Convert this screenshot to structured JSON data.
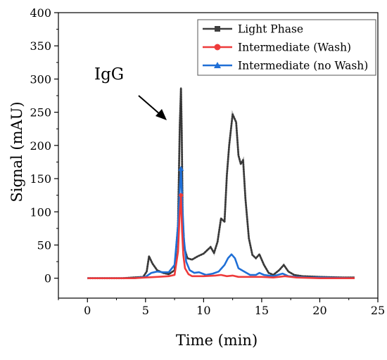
{
  "colors": {
    "light_phase": "#3f3f3f",
    "intermediate_wash": "#ee3b3b",
    "intermediate_no_wash": "#1f6fd6"
  },
  "chart_data": {
    "type": "line",
    "title": "",
    "xlabel": "Time (min)",
    "ylabel": "Signal (mAU)",
    "xlim": [
      -2.5,
      25
    ],
    "ylim": [
      -30,
      400
    ],
    "xticks": [
      0,
      5,
      10,
      15,
      20,
      25
    ],
    "yticks": [
      0,
      50,
      100,
      150,
      200,
      250,
      300,
      350,
      400
    ],
    "grid": false,
    "legend_position": "top-right",
    "annotation": {
      "text": "IgG",
      "points_to": [
        8.1,
        285
      ]
    },
    "series": [
      {
        "name": "Light Phase",
        "marker": "square",
        "color": "#3f3f3f",
        "x": [
          0,
          3,
          4.8,
          5.1,
          5.3,
          5.6,
          6.0,
          6.5,
          7.0,
          7.5,
          7.8,
          7.95,
          8.05,
          8.12,
          8.2,
          8.35,
          8.6,
          9.0,
          9.5,
          10.0,
          10.3,
          10.6,
          10.9,
          11.2,
          11.5,
          11.8,
          12.0,
          12.2,
          12.5,
          12.8,
          13.0,
          13.2,
          13.4,
          13.6,
          13.9,
          14.2,
          14.5,
          14.8,
          15.2,
          15.6,
          16.0,
          16.5,
          16.9,
          17.3,
          17.8,
          18.5,
          20,
          22,
          23
        ],
        "y": [
          0,
          0,
          2,
          10,
          33,
          22,
          12,
          8,
          6,
          12,
          80,
          230,
          286,
          220,
          90,
          45,
          30,
          28,
          33,
          37,
          42,
          47,
          38,
          55,
          90,
          85,
          155,
          200,
          247,
          235,
          185,
          172,
          178,
          120,
          60,
          35,
          30,
          36,
          20,
          8,
          5,
          12,
          20,
          10,
          5,
          3,
          2,
          1,
          1
        ]
      },
      {
        "name": "Intermediate (Wash)",
        "marker": "circle",
        "color": "#ee3b3b",
        "x": [
          0,
          4,
          5,
          6,
          7,
          7.5,
          7.8,
          7.95,
          8.05,
          8.15,
          8.25,
          8.4,
          8.7,
          9.0,
          10,
          11,
          11.5,
          12,
          12.5,
          13,
          14,
          15,
          16,
          17,
          18,
          20,
          23
        ],
        "y": [
          0,
          0,
          1,
          2,
          3,
          5,
          40,
          100,
          125,
          70,
          35,
          15,
          6,
          3,
          3,
          4,
          5,
          3,
          4,
          2,
          2,
          2,
          1,
          3,
          1,
          0,
          0
        ],
        "points": [
          [
            8.05,
            125
          ]
        ]
      },
      {
        "name": "Intermediate (no Wash)",
        "marker": "triangle",
        "color": "#1f6fd6",
        "x": [
          0,
          4,
          5,
          5.5,
          6,
          6.5,
          7,
          7.5,
          7.8,
          7.95,
          8.05,
          8.15,
          8.3,
          8.5,
          8.8,
          9.2,
          9.6,
          10.2,
          10.8,
          11.3,
          11.8,
          12.1,
          12.4,
          12.7,
          13.0,
          13.5,
          14,
          14.5,
          14.8,
          15.2,
          16,
          16.8,
          17.3,
          18,
          19,
          20,
          23
        ],
        "y": [
          0,
          0,
          2,
          8,
          10,
          9,
          9,
          20,
          80,
          135,
          165,
          120,
          60,
          25,
          12,
          8,
          9,
          5,
          7,
          10,
          20,
          30,
          36,
          30,
          15,
          10,
          5,
          5,
          8,
          5,
          3,
          7,
          3,
          2,
          1,
          1,
          0
        ],
        "points": [
          [
            8.05,
            165
          ]
        ]
      }
    ]
  }
}
